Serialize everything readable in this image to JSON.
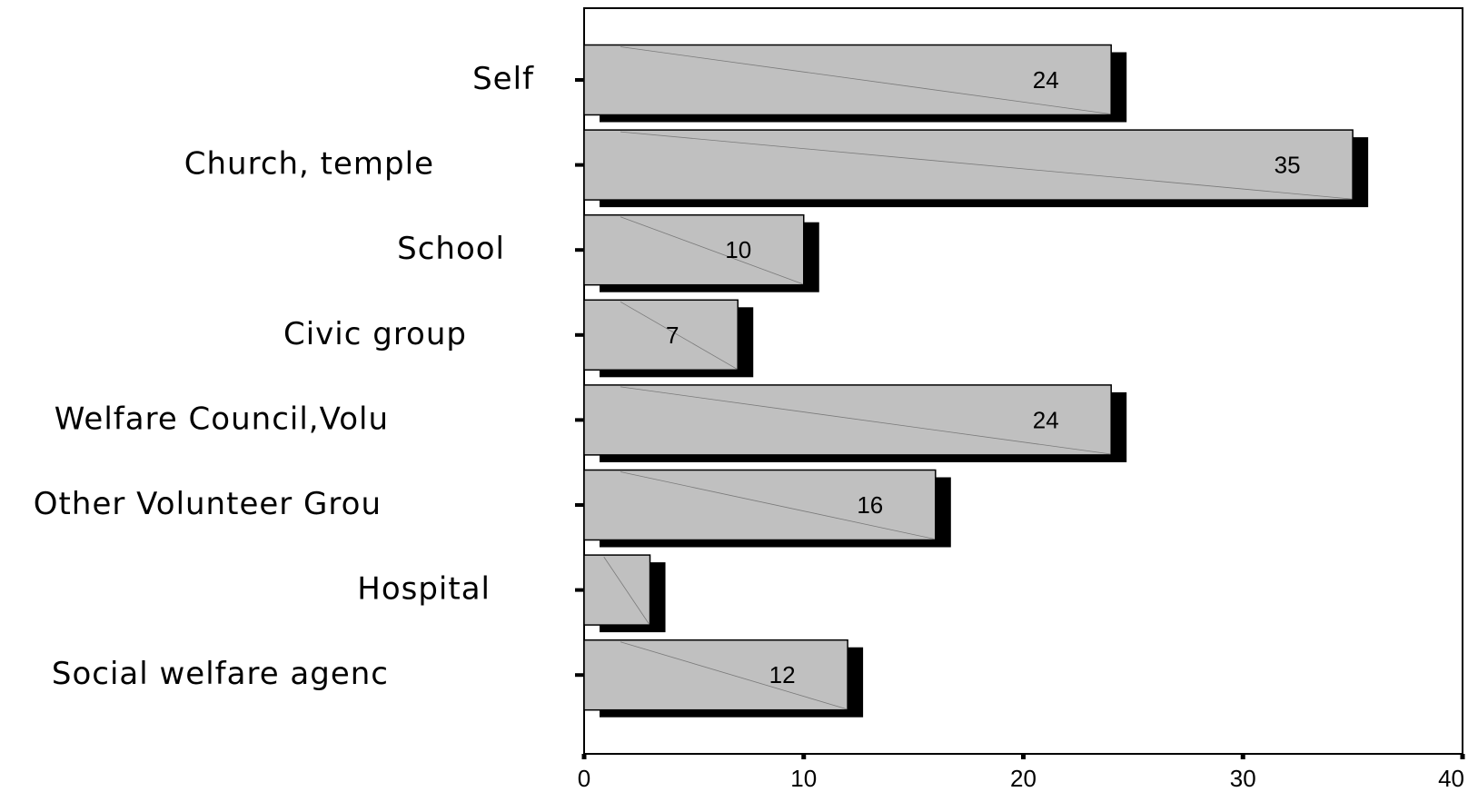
{
  "chart_data": {
    "type": "bar",
    "orientation": "horizontal",
    "title": "",
    "xlabel": "",
    "ylabel": "",
    "categories": [
      "Self",
      "Church, temple",
      "School",
      "Civic group",
      "Welfare Council,Volu",
      "Other Volunteer Grou",
      "Hospital",
      "Social welfare agenc"
    ],
    "values": [
      24,
      35,
      10,
      7,
      24,
      16,
      3,
      12
    ],
    "data_labels": [
      "24",
      "35",
      "10",
      "7",
      "24",
      "16",
      "",
      "12"
    ],
    "xlim": [
      0,
      40
    ],
    "x_ticks": [
      0,
      10,
      20,
      30,
      40
    ],
    "x_tick_labels": [
      "0",
      "10",
      "20",
      "30",
      "40"
    ],
    "grid": false,
    "legend": "none",
    "colors": {
      "bar_fill": "#c0c0c0",
      "bar_stroke": "#000000",
      "bar_shadow": "#000000",
      "axis": "#000000"
    }
  }
}
